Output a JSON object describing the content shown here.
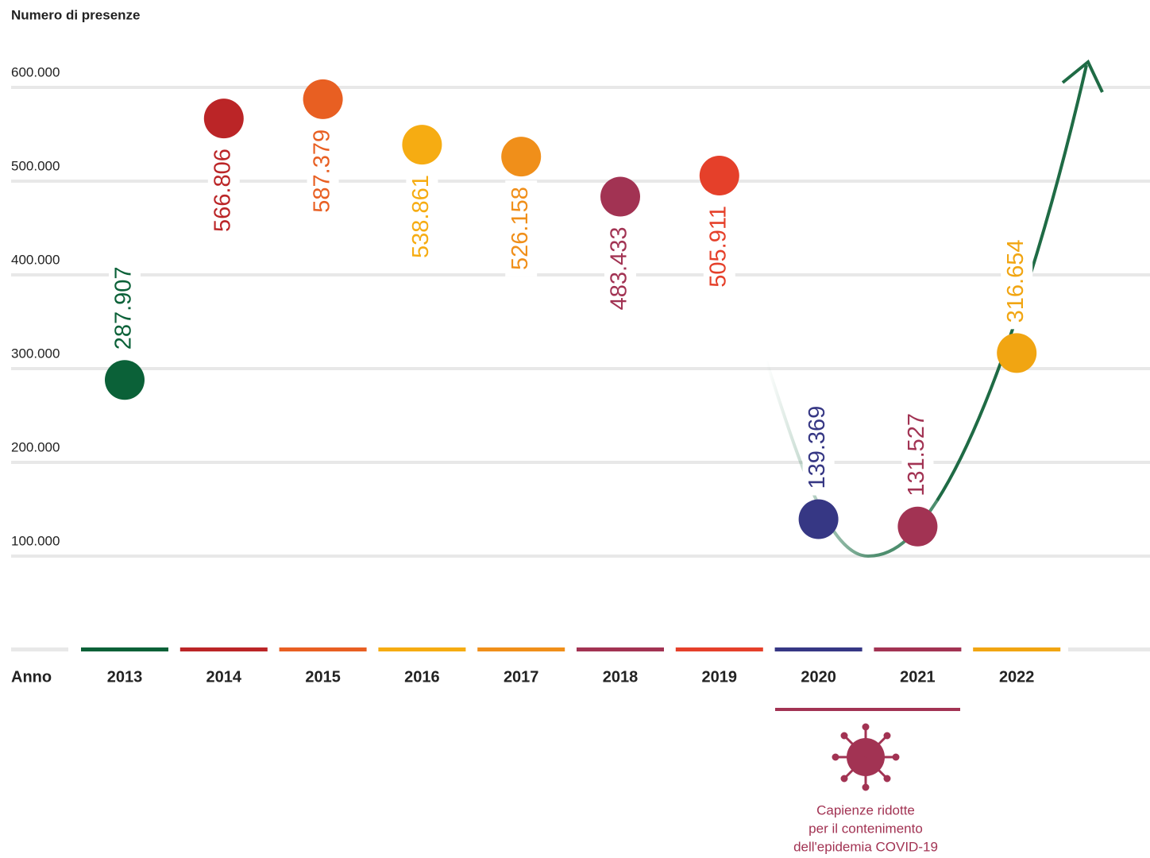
{
  "chart_data": {
    "type": "dot",
    "y_label": "Numero di presenze",
    "x_label": "Anno",
    "categories": [
      "2013",
      "2014",
      "2015",
      "2016",
      "2017",
      "2018",
      "2019",
      "2020",
      "2021",
      "2022"
    ],
    "values": [
      287907,
      566806,
      587379,
      538861,
      526158,
      483433,
      505911,
      139369,
      131527,
      316654
    ],
    "value_labels": [
      "287.907",
      "566.806",
      "587.379",
      "538.861",
      "526.158",
      "483.433",
      "505.911",
      "139.369",
      "131.527",
      "316.654"
    ],
    "colors": [
      "#0b6138",
      "#bb2527",
      "#e85f22",
      "#f6ac12",
      "#f08f1a",
      "#a23353",
      "#e5402a",
      "#363784",
      "#a23353",
      "#f1a512"
    ],
    "ylim": [
      0,
      600000
    ],
    "yticks": [
      {
        "value": 100000,
        "label": "100.000"
      },
      {
        "value": 200000,
        "label": "200.000"
      },
      {
        "value": 300000,
        "label": "300.000"
      },
      {
        "value": 400000,
        "label": "400.000"
      },
      {
        "value": 500000,
        "label": "500.000"
      },
      {
        "value": 600000,
        "label": "600.000"
      }
    ],
    "grid": true,
    "annotation": [
      "Capienze ridotte",
      "per il contenimento",
      "dell'epidemia COVID-19"
    ]
  }
}
